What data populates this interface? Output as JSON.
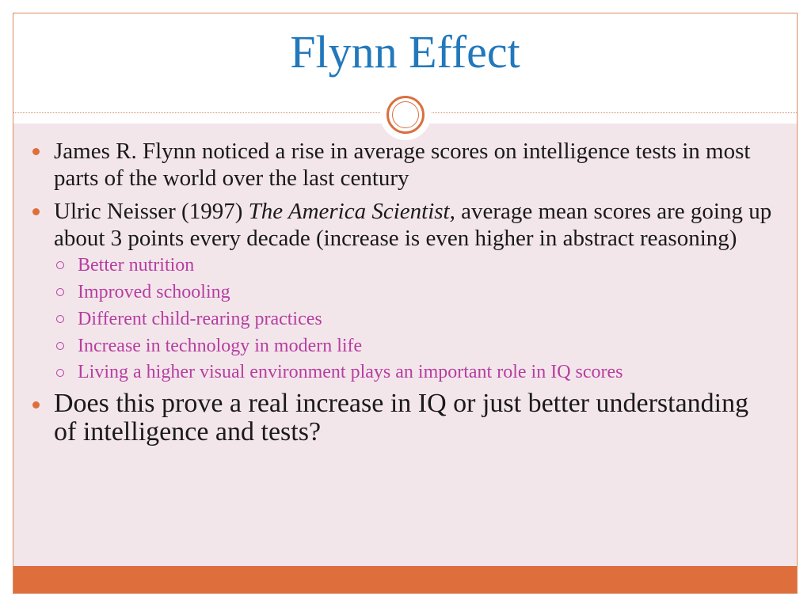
{
  "slide": {
    "title": "Flynn Effect",
    "bullets": [
      {
        "text": "James R. Flynn noticed a rise in average scores on intelligence tests in most parts of the world over the last century"
      },
      {
        "prefix": "Ulric Neisser (1997) ",
        "italic": "The America Scientist,",
        "suffix": " average mean scores are going up about 3 points every decade (increase is even higher in abstract reasoning)",
        "sub_items": [
          "Better nutrition",
          "Improved schooling",
          "Different child-rearing practices",
          "Increase in technology in modern life",
          "Living a higher visual environment plays an important role in IQ scores"
        ]
      },
      {
        "text": "Does this prove a real increase in IQ or just better understanding of intelligence and tests?"
      }
    ]
  },
  "colors": {
    "title": "#2278bb",
    "accent": "#de6e3c",
    "sub_bullet_text": "#b63ea1",
    "content_background": "#f3e6ea"
  }
}
